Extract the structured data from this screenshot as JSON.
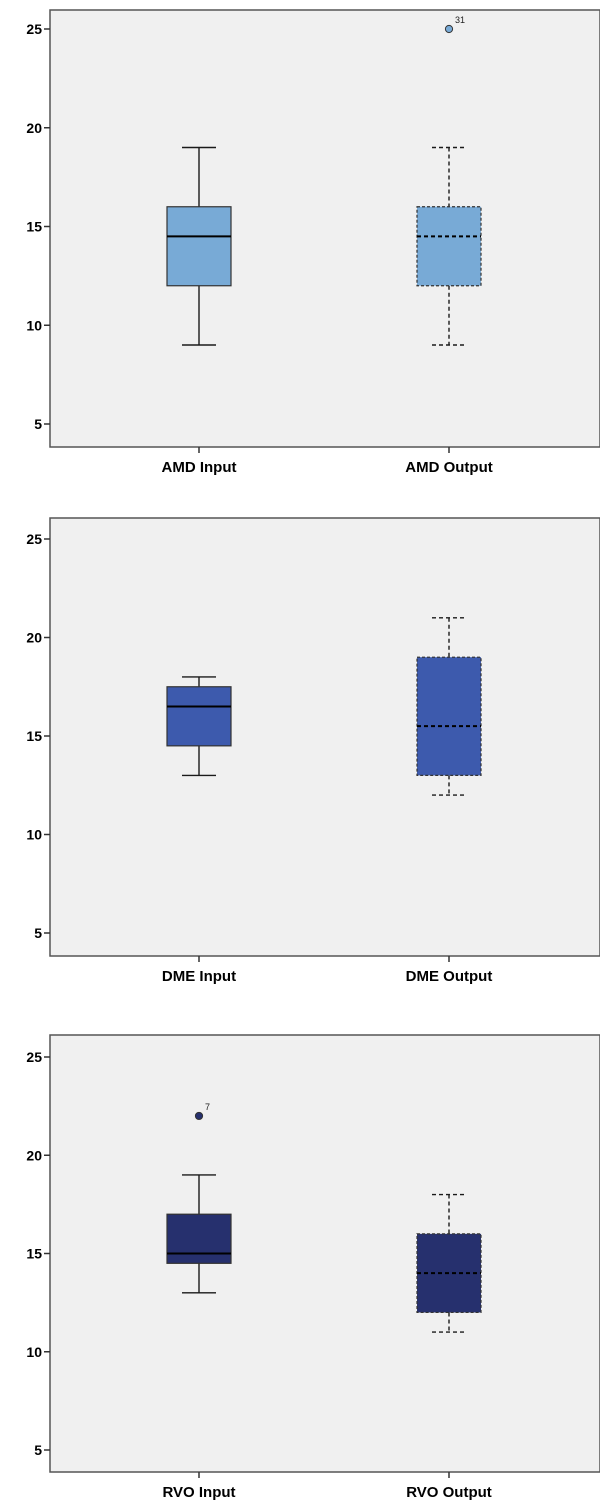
{
  "chart_data": [
    {
      "type": "boxplot",
      "title": "",
      "xlabel": "",
      "ylabel": "",
      "ylim": [
        4,
        26
      ],
      "yticks": [
        5,
        10,
        15,
        20,
        25
      ],
      "grid": false,
      "boxes": [
        {
          "name": "AMD Input",
          "whisker_low": 9,
          "q1": 12,
          "median": 14.5,
          "q3": 16,
          "whisker_high": 19,
          "outliers": [],
          "style": "solid",
          "color": "#78aad6"
        },
        {
          "name": "AMD Output",
          "whisker_low": 9,
          "q1": 12,
          "median": 14.5,
          "q3": 16,
          "whisker_high": 19,
          "outliers": [
            {
              "value": 25,
              "label": "31"
            }
          ],
          "style": "dashed",
          "color": "#78aad6"
        }
      ]
    },
    {
      "type": "boxplot",
      "title": "",
      "xlabel": "",
      "ylabel": "",
      "ylim": [
        4,
        26
      ],
      "yticks": [
        5,
        10,
        15,
        20,
        25
      ],
      "grid": false,
      "boxes": [
        {
          "name": "DME Input",
          "whisker_low": 13,
          "q1": 14.5,
          "median": 16.5,
          "q3": 17.5,
          "whisker_high": 18,
          "outliers": [],
          "style": "solid",
          "color": "#3d5aad"
        },
        {
          "name": "DME Output",
          "whisker_low": 12,
          "q1": 13,
          "median": 15.5,
          "q3": 19,
          "whisker_high": 21,
          "outliers": [],
          "style": "dashed",
          "color": "#3d5aad"
        }
      ]
    },
    {
      "type": "boxplot",
      "title": "",
      "xlabel": "",
      "ylabel": "",
      "ylim": [
        4,
        26
      ],
      "yticks": [
        5,
        10,
        15,
        20,
        25
      ],
      "grid": false,
      "boxes": [
        {
          "name": "RVO Input",
          "whisker_low": 13,
          "q1": 14.5,
          "median": 15,
          "q3": 17,
          "whisker_high": 19,
          "outliers": [
            {
              "value": 22,
              "label": "7"
            }
          ],
          "style": "solid",
          "color": "#26306e"
        },
        {
          "name": "RVO Output",
          "whisker_low": 11,
          "q1": 12,
          "median": 14,
          "q3": 16,
          "whisker_high": 18,
          "outliers": [],
          "style": "dashed",
          "color": "#26306e"
        }
      ]
    }
  ]
}
